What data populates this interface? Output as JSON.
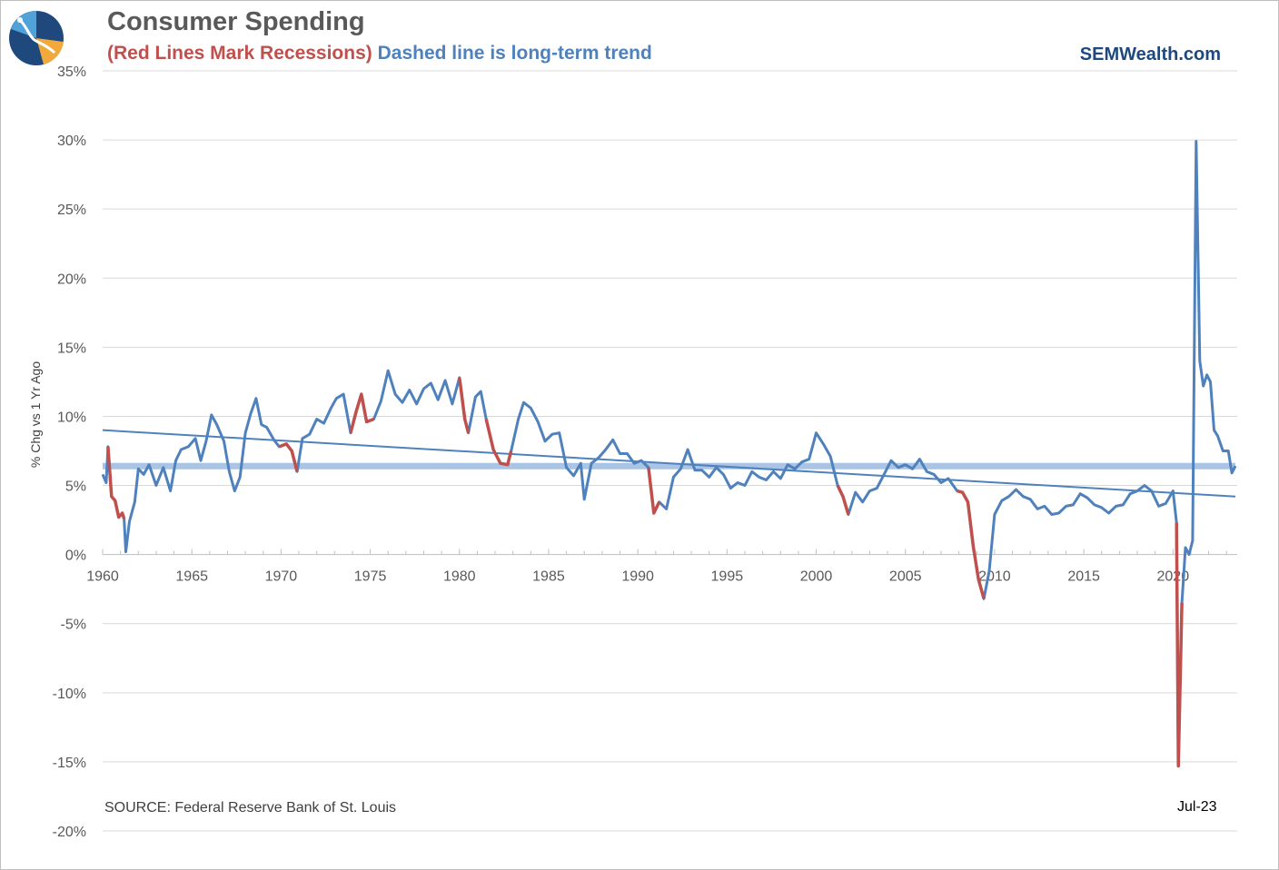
{
  "header": {
    "title": "Consumer Spending",
    "subtitle_red": "(Red Lines Mark Recessions)",
    "subtitle_blue": "Dashed line is long-term trend",
    "brand": "SEMWealth.com"
  },
  "footer": {
    "source": "SOURCE:  Federal Reserve Bank of St. Louis",
    "last_label": "Jul-23"
  },
  "colors": {
    "series": "#4f81bd",
    "recession": "#c0504d",
    "trend": "#4f81bd",
    "average": "#a9c4e4",
    "grid": "#d9d9d9"
  },
  "chart_data": {
    "type": "line",
    "title": "Consumer Spending",
    "ylabel": "% Chg vs 1 Yr Ago",
    "xlabel": "",
    "x_ticks": [
      1960,
      1965,
      1970,
      1975,
      1980,
      1985,
      1990,
      1995,
      2000,
      2005,
      2010,
      2015,
      2020
    ],
    "y_ticks": [
      "35%",
      "30%",
      "25%",
      "20%",
      "15%",
      "10%",
      "5%",
      "0%",
      "-5%",
      "-10%",
      "-15%",
      "-20%"
    ],
    "xlim": [
      1960,
      2023.6
    ],
    "ylim": [
      -20,
      35
    ],
    "grid": true,
    "average_line": 6.4,
    "trend_line": {
      "start": [
        1960,
        9.0
      ],
      "end": [
        2023.5,
        4.2
      ]
    },
    "recessions": [
      [
        1960.3,
        1961.2
      ],
      [
        1969.9,
        1970.9
      ],
      [
        1973.9,
        1975.2
      ],
      [
        1980.0,
        1980.5
      ],
      [
        1981.5,
        1982.9
      ],
      [
        1990.6,
        1991.2
      ],
      [
        2001.2,
        2001.9
      ],
      [
        2007.9,
        2009.5
      ],
      [
        2020.1,
        2020.5
      ]
    ],
    "series": [
      {
        "values": [
          [
            1960.0,
            5.8
          ],
          [
            1960.2,
            5.2
          ],
          [
            1960.3,
            7.8
          ],
          [
            1960.5,
            4.2
          ],
          [
            1960.7,
            3.9
          ],
          [
            1960.9,
            2.7
          ],
          [
            1961.1,
            3.0
          ],
          [
            1961.2,
            2.6
          ],
          [
            1961.3,
            0.2
          ],
          [
            1961.5,
            2.4
          ],
          [
            1961.8,
            3.8
          ],
          [
            1962.0,
            6.2
          ],
          [
            1962.3,
            5.8
          ],
          [
            1962.6,
            6.5
          ],
          [
            1963.0,
            5.0
          ],
          [
            1963.4,
            6.3
          ],
          [
            1963.8,
            4.6
          ],
          [
            1964.1,
            6.8
          ],
          [
            1964.4,
            7.6
          ],
          [
            1964.8,
            7.8
          ],
          [
            1965.2,
            8.4
          ],
          [
            1965.5,
            6.8
          ],
          [
            1965.8,
            8.2
          ],
          [
            1966.1,
            10.1
          ],
          [
            1966.4,
            9.4
          ],
          [
            1966.8,
            8.2
          ],
          [
            1967.1,
            6.0
          ],
          [
            1967.4,
            4.6
          ],
          [
            1967.7,
            5.6
          ],
          [
            1968.0,
            8.8
          ],
          [
            1968.3,
            10.2
          ],
          [
            1968.6,
            11.3
          ],
          [
            1968.9,
            9.4
          ],
          [
            1969.2,
            9.2
          ],
          [
            1969.6,
            8.3
          ],
          [
            1969.9,
            7.8
          ],
          [
            1970.3,
            8.0
          ],
          [
            1970.6,
            7.5
          ],
          [
            1970.9,
            6.0
          ],
          [
            1971.2,
            8.4
          ],
          [
            1971.6,
            8.7
          ],
          [
            1972.0,
            9.8
          ],
          [
            1972.4,
            9.5
          ],
          [
            1972.8,
            10.6
          ],
          [
            1973.1,
            11.3
          ],
          [
            1973.5,
            11.6
          ],
          [
            1973.9,
            8.8
          ],
          [
            1974.2,
            10.3
          ],
          [
            1974.5,
            11.6
          ],
          [
            1974.8,
            9.6
          ],
          [
            1975.2,
            9.8
          ],
          [
            1975.6,
            11.1
          ],
          [
            1976.0,
            13.3
          ],
          [
            1976.4,
            11.6
          ],
          [
            1976.8,
            11.0
          ],
          [
            1977.2,
            11.9
          ],
          [
            1977.6,
            10.9
          ],
          [
            1978.0,
            12.0
          ],
          [
            1978.4,
            12.4
          ],
          [
            1978.8,
            11.2
          ],
          [
            1979.2,
            12.6
          ],
          [
            1979.6,
            10.9
          ],
          [
            1980.0,
            12.8
          ],
          [
            1980.3,
            9.8
          ],
          [
            1980.5,
            8.8
          ],
          [
            1980.9,
            11.4
          ],
          [
            1981.2,
            11.8
          ],
          [
            1981.5,
            9.8
          ],
          [
            1981.9,
            7.6
          ],
          [
            1982.3,
            6.6
          ],
          [
            1982.7,
            6.5
          ],
          [
            1982.9,
            7.5
          ],
          [
            1983.3,
            9.8
          ],
          [
            1983.6,
            11.0
          ],
          [
            1984.0,
            10.6
          ],
          [
            1984.4,
            9.6
          ],
          [
            1984.8,
            8.2
          ],
          [
            1985.2,
            8.7
          ],
          [
            1985.6,
            8.8
          ],
          [
            1986.0,
            6.3
          ],
          [
            1986.4,
            5.7
          ],
          [
            1986.8,
            6.6
          ],
          [
            1987.0,
            4.0
          ],
          [
            1987.4,
            6.6
          ],
          [
            1987.8,
            7.0
          ],
          [
            1988.2,
            7.6
          ],
          [
            1988.6,
            8.3
          ],
          [
            1989.0,
            7.3
          ],
          [
            1989.4,
            7.3
          ],
          [
            1989.8,
            6.6
          ],
          [
            1990.2,
            6.8
          ],
          [
            1990.6,
            6.3
          ],
          [
            1990.9,
            3.0
          ],
          [
            1991.2,
            3.8
          ],
          [
            1991.6,
            3.3
          ],
          [
            1992.0,
            5.6
          ],
          [
            1992.4,
            6.2
          ],
          [
            1992.8,
            7.6
          ],
          [
            1993.2,
            6.1
          ],
          [
            1993.6,
            6.1
          ],
          [
            1994.0,
            5.6
          ],
          [
            1994.4,
            6.3
          ],
          [
            1994.8,
            5.8
          ],
          [
            1995.2,
            4.8
          ],
          [
            1995.6,
            5.2
          ],
          [
            1996.0,
            5.0
          ],
          [
            1996.4,
            6.0
          ],
          [
            1996.8,
            5.6
          ],
          [
            1997.2,
            5.4
          ],
          [
            1997.6,
            6.0
          ],
          [
            1998.0,
            5.5
          ],
          [
            1998.4,
            6.5
          ],
          [
            1998.8,
            6.2
          ],
          [
            1999.2,
            6.7
          ],
          [
            1999.6,
            6.9
          ],
          [
            2000.0,
            8.8
          ],
          [
            2000.4,
            8.0
          ],
          [
            2000.8,
            7.1
          ],
          [
            2001.2,
            5.0
          ],
          [
            2001.5,
            4.2
          ],
          [
            2001.8,
            2.9
          ],
          [
            2002.2,
            4.5
          ],
          [
            2002.6,
            3.8
          ],
          [
            2003.0,
            4.6
          ],
          [
            2003.4,
            4.8
          ],
          [
            2003.8,
            5.8
          ],
          [
            2004.2,
            6.8
          ],
          [
            2004.6,
            6.3
          ],
          [
            2005.0,
            6.5
          ],
          [
            2005.4,
            6.2
          ],
          [
            2005.8,
            6.9
          ],
          [
            2006.2,
            6.0
          ],
          [
            2006.6,
            5.8
          ],
          [
            2007.0,
            5.2
          ],
          [
            2007.4,
            5.5
          ],
          [
            2007.9,
            4.6
          ],
          [
            2008.2,
            4.5
          ],
          [
            2008.5,
            3.8
          ],
          [
            2008.8,
            0.6
          ],
          [
            2009.1,
            -1.8
          ],
          [
            2009.4,
            -3.2
          ],
          [
            2009.7,
            -1.2
          ],
          [
            2010.0,
            2.9
          ],
          [
            2010.4,
            3.9
          ],
          [
            2010.8,
            4.2
          ],
          [
            2011.2,
            4.7
          ],
          [
            2011.6,
            4.2
          ],
          [
            2012.0,
            4.0
          ],
          [
            2012.4,
            3.3
          ],
          [
            2012.8,
            3.5
          ],
          [
            2013.2,
            2.9
          ],
          [
            2013.6,
            3.0
          ],
          [
            2014.0,
            3.5
          ],
          [
            2014.4,
            3.6
          ],
          [
            2014.8,
            4.4
          ],
          [
            2015.2,
            4.1
          ],
          [
            2015.6,
            3.6
          ],
          [
            2016.0,
            3.4
          ],
          [
            2016.4,
            3.0
          ],
          [
            2016.8,
            3.5
          ],
          [
            2017.2,
            3.6
          ],
          [
            2017.6,
            4.4
          ],
          [
            2018.0,
            4.6
          ],
          [
            2018.4,
            5.0
          ],
          [
            2018.8,
            4.6
          ],
          [
            2019.2,
            3.5
          ],
          [
            2019.6,
            3.7
          ],
          [
            2020.0,
            4.6
          ],
          [
            2020.2,
            2.3
          ],
          [
            2020.3,
            -15.3
          ],
          [
            2020.5,
            -3.5
          ],
          [
            2020.7,
            0.5
          ],
          [
            2020.9,
            0.0
          ],
          [
            2021.1,
            1.0
          ],
          [
            2021.3,
            29.9
          ],
          [
            2021.5,
            14.0
          ],
          [
            2021.7,
            12.2
          ],
          [
            2021.9,
            13.0
          ],
          [
            2022.1,
            12.5
          ],
          [
            2022.3,
            9.0
          ],
          [
            2022.5,
            8.6
          ],
          [
            2022.8,
            7.5
          ],
          [
            2023.1,
            7.5
          ],
          [
            2023.3,
            5.9
          ],
          [
            2023.5,
            6.4
          ]
        ]
      }
    ]
  }
}
